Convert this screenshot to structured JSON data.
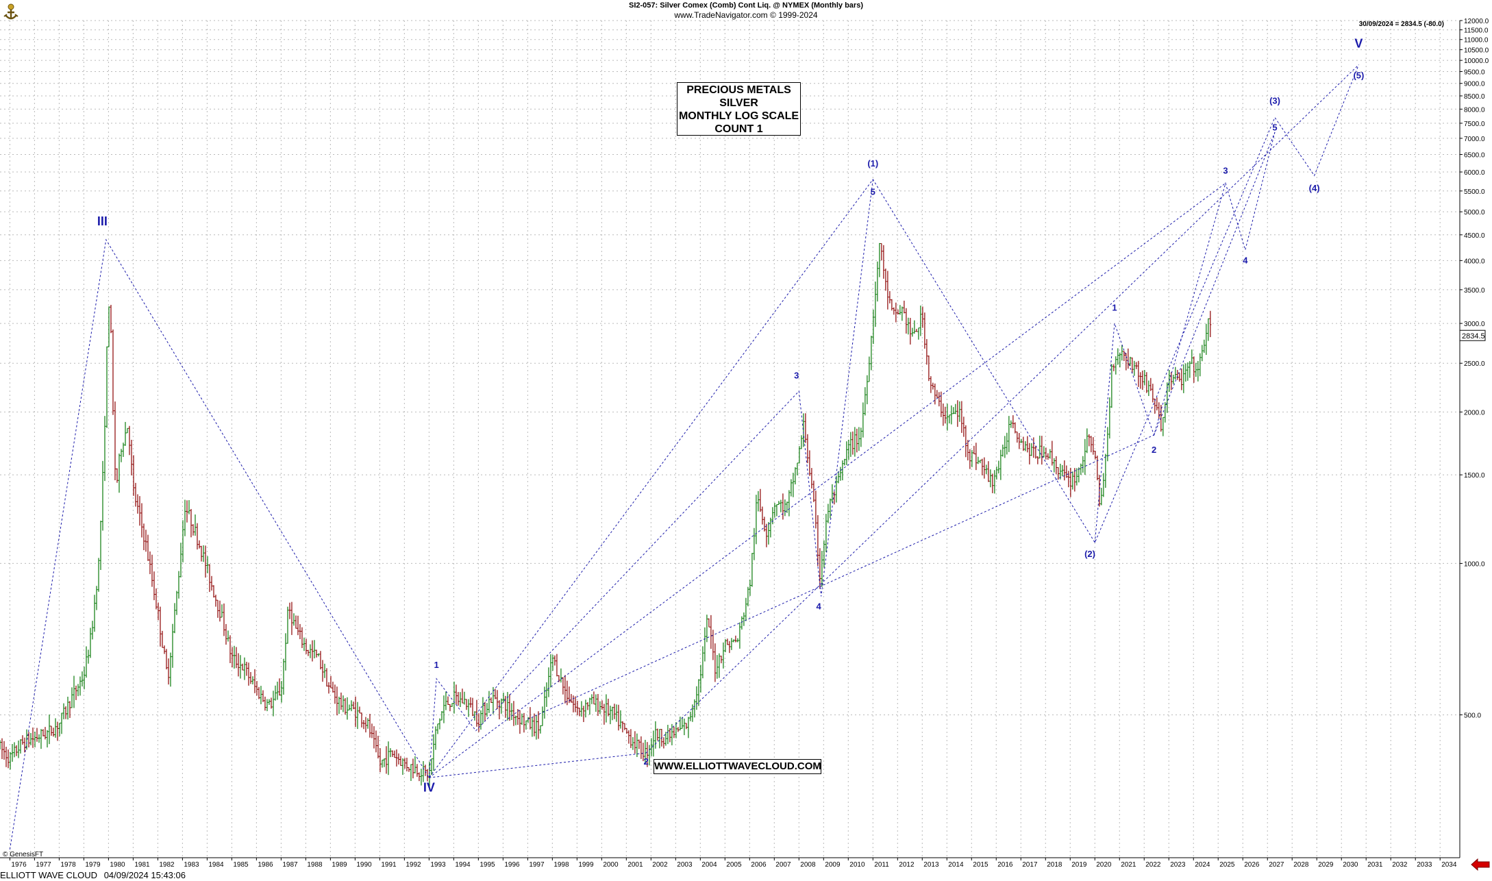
{
  "header": {
    "title": "SI2-057:  Silver Comex (Comb) Cont Liq. @ NYMEX  (Monthly bars)",
    "subtitle": "www.TradeNavigator.com © 1999-2024",
    "last_quote": "30/09/2024 = 2834.5 (-80.0)",
    "last_price_tag": "2834.5"
  },
  "info_box": {
    "line1": "PRECIOUS METALS",
    "line2": "SILVER",
    "line3": "MONTHLY LOG SCALE",
    "line4": "COUNT 1"
  },
  "url_box": "WWW.ELLIOTTWAVECLOUD.COM",
  "footer": {
    "brand": "ELLIOTT WAVE CLOUD",
    "timestamp": "04/09/2024 15:43:06",
    "copyright": "© GenesisFT"
  },
  "colors": {
    "up_bar": "#0a7a0a",
    "down_bar": "#8b0000",
    "wave_line": "#1a1aaa",
    "wave_label": "#1a1aaa",
    "grid": "#b9b9b9",
    "nav_arrow": "#d40000"
  },
  "icons": {
    "logo": "trade-navigator-logo-icon",
    "nav": "scroll-left-arrow-icon"
  },
  "chart_data": {
    "type": "candlestick",
    "scale": "log",
    "ylim": [
      260,
      12000
    ],
    "xlim": [
      1975.6,
      2034.8
    ],
    "y_ticks": [
      {
        "v": 12000,
        "label": "12000.0"
      },
      {
        "v": 11500,
        "label": "11500.0"
      },
      {
        "v": 11000,
        "label": "11000.0"
      },
      {
        "v": 10500,
        "label": "10500.0"
      },
      {
        "v": 10000,
        "label": "10000.0"
      },
      {
        "v": 9500,
        "label": "9500.0"
      },
      {
        "v": 9000,
        "label": "9000.0"
      },
      {
        "v": 8500,
        "label": "8500.0"
      },
      {
        "v": 8000,
        "label": "8000.0"
      },
      {
        "v": 7500,
        "label": "7500.0"
      },
      {
        "v": 7000,
        "label": "7000.0"
      },
      {
        "v": 6500,
        "label": "6500.0"
      },
      {
        "v": 6000,
        "label": "6000.0"
      },
      {
        "v": 5500,
        "label": "5500.0"
      },
      {
        "v": 5000,
        "label": "5000.0"
      },
      {
        "v": 4500,
        "label": "4500.0"
      },
      {
        "v": 4000,
        "label": "4000.0"
      },
      {
        "v": 3500,
        "label": "3500.0"
      },
      {
        "v": 3000,
        "label": "3000.0"
      },
      {
        "v": 2500,
        "label": "2500.0"
      },
      {
        "v": 2000,
        "label": "2000.0"
      },
      {
        "v": 1500,
        "label": "1500.0"
      },
      {
        "v": 1000,
        "label": "1000.0"
      },
      {
        "v": 500,
        "label": "500.0"
      }
    ],
    "x_ticks": [
      "1976",
      "1977",
      "1978",
      "1979",
      "1980",
      "1981",
      "1982",
      "1983",
      "1984",
      "1985",
      "1986",
      "1987",
      "1988",
      "1989",
      "1990",
      "1991",
      "1992",
      "1993",
      "1994",
      "1995",
      "1996",
      "1997",
      "1998",
      "1999",
      "2000",
      "2001",
      "2002",
      "2003",
      "2004",
      "2005",
      "2006",
      "2007",
      "2008",
      "2009",
      "2010",
      "2011",
      "2012",
      "2013",
      "2014",
      "2015",
      "2016",
      "2017",
      "2018",
      "2019",
      "2020",
      "2021",
      "2022",
      "2023",
      "2024",
      "2025",
      "2026",
      "2027",
      "2028",
      "2029",
      "2030",
      "2031",
      "2032",
      "2033",
      "2034"
    ],
    "price_anchors": [
      [
        1975.6,
        430
      ],
      [
        1976.0,
        410
      ],
      [
        1976.5,
        440
      ],
      [
        1977.0,
        450
      ],
      [
        1977.5,
        460
      ],
      [
        1978.0,
        480
      ],
      [
        1978.5,
        540
      ],
      [
        1979.0,
        600
      ],
      [
        1979.3,
        720
      ],
      [
        1979.6,
        1000
      ],
      [
        1979.8,
        1600
      ],
      [
        1979.95,
        2800
      ],
      [
        1980.05,
        3600
      ],
      [
        1980.15,
        2200
      ],
      [
        1980.3,
        1400
      ],
      [
        1980.5,
        1700
      ],
      [
        1980.8,
        1900
      ],
      [
        1981.0,
        1400
      ],
      [
        1981.5,
        1100
      ],
      [
        1982.0,
        800
      ],
      [
        1982.4,
        590
      ],
      [
        1982.8,
        900
      ],
      [
        1983.1,
        1300
      ],
      [
        1983.4,
        1200
      ],
      [
        1983.8,
        1050
      ],
      [
        1984.2,
        900
      ],
      [
        1984.6,
        780
      ],
      [
        1985.0,
        650
      ],
      [
        1985.5,
        620
      ],
      [
        1986.0,
        560
      ],
      [
        1986.5,
        520
      ],
      [
        1987.0,
        560
      ],
      [
        1987.3,
        820
      ],
      [
        1987.6,
        740
      ],
      [
        1988.0,
        680
      ],
      [
        1988.5,
        650
      ],
      [
        1989.0,
        560
      ],
      [
        1989.5,
        520
      ],
      [
        1990.0,
        510
      ],
      [
        1990.5,
        480
      ],
      [
        1991.0,
        400
      ],
      [
        1991.5,
        420
      ],
      [
        1992.0,
        400
      ],
      [
        1992.5,
        390
      ],
      [
        1993.0,
        380
      ],
      [
        1993.3,
        470
      ],
      [
        1993.6,
        520
      ],
      [
        1994.0,
        540
      ],
      [
        1994.5,
        530
      ],
      [
        1995.0,
        490
      ],
      [
        1995.5,
        540
      ],
      [
        1996.0,
        530
      ],
      [
        1996.5,
        500
      ],
      [
        1997.0,
        480
      ],
      [
        1997.5,
        470
      ],
      [
        1998.0,
        650
      ],
      [
        1998.5,
        560
      ],
      [
        1999.0,
        510
      ],
      [
        1999.5,
        530
      ],
      [
        2000.0,
        520
      ],
      [
        2000.5,
        500
      ],
      [
        2001.0,
        460
      ],
      [
        2001.5,
        430
      ],
      [
        2001.8,
        420
      ],
      [
        2002.2,
        460
      ],
      [
        2002.6,
        450
      ],
      [
        2003.0,
        460
      ],
      [
        2003.5,
        480
      ],
      [
        2004.0,
        600
      ],
      [
        2004.3,
        780
      ],
      [
        2004.6,
        620
      ],
      [
        2005.0,
        690
      ],
      [
        2005.5,
        700
      ],
      [
        2006.0,
        900
      ],
      [
        2006.3,
        1350
      ],
      [
        2006.7,
        1150
      ],
      [
        2007.0,
        1320
      ],
      [
        2007.5,
        1290
      ],
      [
        2008.0,
        1650
      ],
      [
        2008.2,
        1900
      ],
      [
        2008.6,
        1300
      ],
      [
        2008.85,
        950
      ],
      [
        2009.2,
        1300
      ],
      [
        2009.6,
        1450
      ],
      [
        2010.0,
        1700
      ],
      [
        2010.5,
        1800
      ],
      [
        2010.9,
        2700
      ],
      [
        2011.1,
        3500
      ],
      [
        2011.3,
        4400
      ],
      [
        2011.5,
        3600
      ],
      [
        2011.8,
        3100
      ],
      [
        2012.2,
        3200
      ],
      [
        2012.6,
        2800
      ],
      [
        2013.0,
        3100
      ],
      [
        2013.3,
        2300
      ],
      [
        2013.6,
        2100
      ],
      [
        2014.0,
        1950
      ],
      [
        2014.5,
        2000
      ],
      [
        2014.9,
        1650
      ],
      [
        2015.3,
        1600
      ],
      [
        2015.8,
        1450
      ],
      [
        2016.2,
        1600
      ],
      [
        2016.6,
        1950
      ],
      [
        2017.0,
        1750
      ],
      [
        2017.5,
        1650
      ],
      [
        2018.0,
        1680
      ],
      [
        2018.5,
        1550
      ],
      [
        2018.9,
        1450
      ],
      [
        2019.3,
        1500
      ],
      [
        2019.7,
        1750
      ],
      [
        2020.0,
        1700
      ],
      [
        2020.2,
        1250
      ],
      [
        2020.5,
        1750
      ],
      [
        2020.7,
        2500
      ],
      [
        2021.0,
        2650
      ],
      [
        2021.5,
        2500
      ],
      [
        2022.0,
        2300
      ],
      [
        2022.3,
        2200
      ],
      [
        2022.7,
        1850
      ],
      [
        2023.0,
        2350
      ],
      [
        2023.5,
        2300
      ],
      [
        2023.9,
        2500
      ],
      [
        2024.2,
        2400
      ],
      [
        2024.45,
        2800
      ],
      [
        2024.6,
        3000
      ],
      [
        2024.75,
        2834
      ]
    ],
    "wave_paths": [
      {
        "name": "primary-path",
        "points": [
          [
            1976.0,
            270
          ],
          [
            1979.9,
            4400
          ],
          [
            1993.0,
            375
          ],
          [
            2011.0,
            5800
          ],
          [
            2020.0,
            1100
          ],
          [
            2027.3,
            7700
          ],
          [
            2028.9,
            5900
          ],
          [
            2030.7,
            9800
          ]
        ]
      },
      {
        "name": "wave-v-minor-path",
        "points": [
          [
            1993.0,
            375
          ],
          [
            1993.3,
            590
          ],
          [
            1994.9,
            465
          ],
          [
            2008.0,
            2200
          ],
          [
            2008.9,
            860
          ],
          [
            2011.0,
            5800
          ]
        ]
      },
      {
        "name": "wave-3-minor-path",
        "points": [
          [
            2020.0,
            1100
          ],
          [
            2020.8,
            3000
          ],
          [
            2022.4,
            1800
          ],
          [
            2025.3,
            5700
          ],
          [
            2026.1,
            4200
          ],
          [
            2027.3,
            7200
          ]
        ]
      },
      {
        "name": "wave-iv-correction-path",
        "points": [
          [
            1993.0,
            375
          ],
          [
            2001.8,
            420
          ]
        ]
      },
      {
        "name": "channel-line-1",
        "points": [
          [
            1993.0,
            375
          ],
          [
            2025.3,
            5700
          ]
        ]
      },
      {
        "name": "channel-line-2",
        "points": [
          [
            1997.0,
            490
          ],
          [
            2022.4,
            1800
          ]
        ]
      },
      {
        "name": "channel-line-3",
        "points": [
          [
            2001.8,
            420
          ],
          [
            2030.7,
            9800
          ]
        ]
      },
      {
        "name": "wave-5-projection-path",
        "points": [
          [
            2022.4,
            1800
          ],
          [
            2027.3,
            7200
          ]
        ]
      }
    ],
    "wave_labels": [
      {
        "text": "III",
        "x": 1979.75,
        "y": 4700,
        "size": "big"
      },
      {
        "text": "IV",
        "x": 1993.0,
        "y": 352,
        "size": "big"
      },
      {
        "text": "V",
        "x": 2030.7,
        "y": 10600,
        "size": "big"
      },
      {
        "text": "1",
        "x": 1993.3,
        "y": 620,
        "size": "small"
      },
      {
        "text": "2",
        "x": 2001.8,
        "y": 398,
        "size": "small"
      },
      {
        "text": "3",
        "x": 2007.9,
        "y": 2330,
        "size": "small"
      },
      {
        "text": "4",
        "x": 2008.8,
        "y": 810,
        "size": "small"
      },
      {
        "text": "5",
        "x": 2011.0,
        "y": 5400,
        "size": "small"
      },
      {
        "text": "(1)",
        "x": 2011.0,
        "y": 6150,
        "size": "small"
      },
      {
        "text": "(2)",
        "x": 2019.8,
        "y": 1030,
        "size": "small"
      },
      {
        "text": "1",
        "x": 2020.8,
        "y": 3180,
        "size": "small"
      },
      {
        "text": "2",
        "x": 2022.4,
        "y": 1660,
        "size": "small"
      },
      {
        "text": "3",
        "x": 2025.3,
        "y": 5950,
        "size": "small"
      },
      {
        "text": "4",
        "x": 2026.1,
        "y": 3950,
        "size": "small"
      },
      {
        "text": "(3)",
        "x": 2027.3,
        "y": 8200,
        "size": "small"
      },
      {
        "text": "5",
        "x": 2027.3,
        "y": 7250,
        "size": "small"
      },
      {
        "text": "(4)",
        "x": 2028.9,
        "y": 5500,
        "size": "small"
      },
      {
        "text": "(5)",
        "x": 2030.7,
        "y": 9200,
        "size": "small"
      }
    ]
  }
}
